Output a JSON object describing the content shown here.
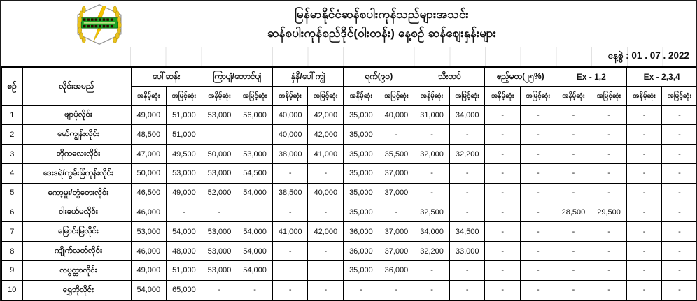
{
  "header": {
    "title_line1": "မြန်မာနိုင်ငံဆန်စပါးကုန်သည်များအသင်း",
    "title_line2": "ဆန်စပါးကုန်စည်ဒိုင်(ဝါးတန်း) နေ့စဉ် ဆန်ဈေးနှန်းများ",
    "logo_name": "rice-traders-association-emblem",
    "date_text": "နေ့စွဲ  : 01 . 07 . 2022"
  },
  "colors": {
    "text": "#111111",
    "logo_wheat": "#e8c11c",
    "logo_green": "#1da327",
    "logo_bolt": "#f5c400",
    "border": "#000000"
  },
  "table": {
    "col_no_label": "စဉ်",
    "col_name_label": "လိုင်းအမည်",
    "sub_min": "အနိမ့်ဆုံး",
    "sub_max": "အမြင့်ဆုံး",
    "groups": [
      "ပေါ်ဆန်း",
      "ကြာပျံ/တောင်ပျံ",
      "နှံနီ/ပေါ်ကျွဲ",
      "ရက်(၉၀)",
      "သီးထပ်",
      "ဧည့်မထ(၂၅%)",
      "Ex - 1,2",
      "Ex - 2,3,4"
    ],
    "rows": [
      {
        "no": "1",
        "name": "ဖျာပုံလိုင်း",
        "values": [
          "49,000",
          "51,000",
          "53,000",
          "56,000",
          "40,000",
          "42,000",
          "35,000",
          "40,000",
          "31,000",
          "34,000",
          "-",
          "-",
          "-",
          "-",
          "-",
          "-"
        ]
      },
      {
        "no": "2",
        "name": "မော်ကျွန်းလိုင်း",
        "values": [
          "48,500",
          "51,000",
          "",
          "",
          "40,000",
          "42,000",
          "35,000",
          "-",
          "-",
          "-",
          "-",
          "-",
          "-",
          "-",
          "-",
          "-"
        ]
      },
      {
        "no": "3",
        "name": "ဘိုကလေးလိုင်း",
        "values": [
          "47,000",
          "49,500",
          "50,000",
          "53,000",
          "38,000",
          "41,000",
          "35,000",
          "35,500",
          "32,000",
          "32,200",
          "-",
          "-",
          "-",
          "-",
          "-",
          "-"
        ]
      },
      {
        "no": "4",
        "name": "ဒေးဒရဲ/ကွမ်းခြံကုန်းလိုင်း",
        "values": [
          "50,000",
          "53,000",
          "53,000",
          "54,500",
          "-",
          "-",
          "35,000",
          "37,000",
          "-",
          "-",
          "-",
          "-",
          "-",
          "-",
          "-",
          "-"
        ]
      },
      {
        "no": "5",
        "name": "ကော့မှူး/တွံတေးလိုင်း",
        "values": [
          "46,500",
          "49,000",
          "52,000",
          "54,000",
          "38,500",
          "40,000",
          "35,000",
          "37,000",
          "-",
          "-",
          "-",
          "-",
          "-",
          "-",
          "-",
          "-"
        ]
      },
      {
        "no": "6",
        "name": "ဝါးခယ်မလိုင်း",
        "values": [
          "46,000",
          "-",
          "-",
          "",
          "-",
          "-",
          "35,000",
          "-",
          "32,500",
          "-",
          "-",
          "-",
          "28,500",
          "29,500",
          "-",
          "-"
        ]
      },
      {
        "no": "7",
        "name": "မြောင်းမြလိုင်း",
        "values": [
          "53,000",
          "54,000",
          "53,000",
          "54,000",
          "41,000",
          "42,000",
          "36,000",
          "37,000",
          "34,000",
          "34,500",
          "-",
          "-",
          "-",
          "-",
          "-",
          "-"
        ]
      },
      {
        "no": "8",
        "name": "ကျိုက်လတ်လိုင်း",
        "values": [
          "46,000",
          "48,000",
          "53,000",
          "54,000",
          "-",
          "-",
          "36,000",
          "37,000",
          "32,200",
          "33,000",
          "-",
          "-",
          "-",
          "-",
          "-",
          "-"
        ]
      },
      {
        "no": "9",
        "name": "လပွတ္တာလိုင်း",
        "values": [
          "49,000",
          "51,000",
          "53,000",
          "54,000",
          "",
          "",
          "35,000",
          "36,000",
          "-",
          "-",
          "-",
          "-",
          "-",
          "-",
          "-",
          "-"
        ]
      },
      {
        "no": "10",
        "name": "ရွှေဘိုလိုင်း",
        "values": [
          "54,000",
          "65,000",
          "-",
          "-",
          "-",
          "-",
          "-",
          "-",
          "-",
          "-",
          "-",
          "-",
          "-",
          "-",
          "-",
          "-"
        ]
      }
    ]
  }
}
